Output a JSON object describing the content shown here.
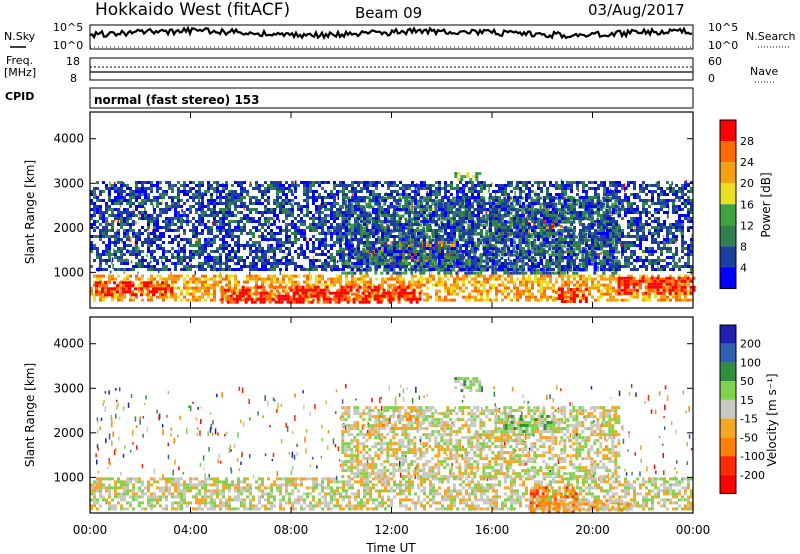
{
  "header": {
    "station": "Hokkaido West (fitACF)",
    "beam": "Beam 09",
    "date": "03/Aug/2017"
  },
  "left_labels": {
    "nsky": "N.Sky",
    "freq_line1": "Freq.",
    "freq_line2": "[MHz]",
    "cpid": "CPID"
  },
  "right_labels": {
    "nsearch": "N.Search",
    "nave": "Nave"
  },
  "noise_panel": {
    "ticks_left": [
      "10^5",
      "10^0"
    ],
    "ticks_right": [
      "10^5",
      "10^0"
    ]
  },
  "freq_panel": {
    "ticks_left": [
      "18",
      "8"
    ],
    "ticks_right": [
      "60",
      "0"
    ]
  },
  "cpid_text": "normal (fast stereo) 153",
  "colors": {
    "power": [
      "#0000ff",
      "#1f3f9f",
      "#2f7f4f",
      "#3fa33f",
      "#e8e020",
      "#f5a010",
      "#ff6a00",
      "#ff0000"
    ],
    "velocity": [
      "#1f1fb0",
      "#2f5faf",
      "#2f8f3f",
      "#7fd34f",
      "#c8c8c0",
      "#f5a623",
      "#ff7f00",
      "#ff2a00",
      "#ff0000"
    ]
  },
  "chart_data": [
    {
      "type": "heatmap",
      "name": "power",
      "ylabel": "Slant Range [km]",
      "yticks": [
        "1000",
        "2000",
        "3000",
        "4000"
      ],
      "ylim": [
        200,
        4600
      ],
      "xlim": [
        "00:00",
        "24:00"
      ],
      "colorbar_label": "Power [dB]",
      "colorbar_ticks": [
        "4",
        "8",
        "12",
        "16",
        "20",
        "24",
        "28"
      ],
      "regions": [
        {
          "t0": 0.0,
          "t1": 24.0,
          "r0": 350,
          "r1": 950,
          "level": 5
        },
        {
          "t0": 0.2,
          "t1": 3.2,
          "r0": 500,
          "r1": 800,
          "level": 7
        },
        {
          "t0": 5.2,
          "t1": 13.2,
          "r0": 350,
          "r1": 700,
          "level": 7
        },
        {
          "t0": 18.5,
          "t1": 19.8,
          "r0": 350,
          "r1": 650,
          "level": 7
        },
        {
          "t0": 21.0,
          "t1": 24.0,
          "r0": 500,
          "r1": 900,
          "level": 7
        },
        {
          "t0": 11.0,
          "t1": 14.5,
          "r0": 1250,
          "r1": 1700,
          "level": 6
        },
        {
          "t0": 16.2,
          "t1": 18.8,
          "r0": 1800,
          "r1": 2200,
          "level": 6
        },
        {
          "t0": 10.0,
          "t1": 21.0,
          "r0": 1000,
          "r1": 2700,
          "level": 2
        },
        {
          "t0": 14.5,
          "t1": 15.5,
          "r0": 3050,
          "r1": 3250,
          "level": 3
        },
        {
          "t0": 0.0,
          "t1": 24.0,
          "r0": 1050,
          "r1": 3050,
          "level": 1
        }
      ]
    },
    {
      "type": "heatmap",
      "name": "velocity",
      "ylabel": "Slant Range [km]",
      "yticks": [
        "1000",
        "2000",
        "3000",
        "4000"
      ],
      "ylim": [
        200,
        4600
      ],
      "xlim": [
        "00:00",
        "24:00"
      ],
      "xticks": [
        "00:00",
        "04:00",
        "08:00",
        "12:00",
        "16:00",
        "20:00",
        "00:00"
      ],
      "xlabel": "Time UT",
      "colorbar_label": "Velocity [m s⁻¹]",
      "colorbar_ticks": [
        "200",
        "100",
        "50",
        "15",
        "-15",
        "-50",
        "-100",
        "-200"
      ],
      "regions": [
        {
          "t0": 0.0,
          "t1": 24.0,
          "r0": 300,
          "r1": 1000,
          "level": 4
        },
        {
          "t0": 10.0,
          "t1": 21.0,
          "r0": 1000,
          "r1": 2600,
          "level": 4
        },
        {
          "t0": 17.5,
          "t1": 19.3,
          "r0": 250,
          "r1": 800,
          "level": 6
        },
        {
          "t0": 18.0,
          "t1": 21.5,
          "r0": 250,
          "r1": 500,
          "level": 5
        },
        {
          "t0": 14.5,
          "t1": 15.5,
          "r0": 2950,
          "r1": 3250,
          "level": 3
        },
        {
          "t0": 11.5,
          "t1": 13.0,
          "r0": 2100,
          "r1": 2400,
          "level": 5
        },
        {
          "t0": 16.5,
          "t1": 18.5,
          "r0": 2000,
          "r1": 2400,
          "level": 3
        }
      ]
    }
  ]
}
